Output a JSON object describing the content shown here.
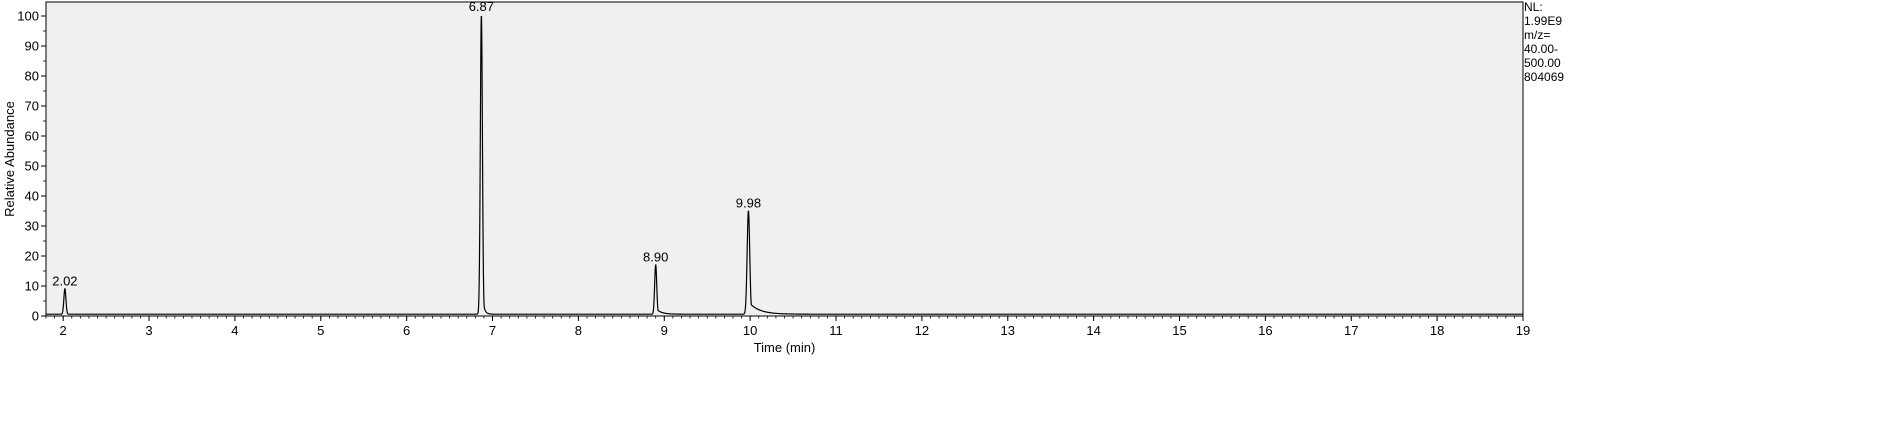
{
  "chart_data": {
    "type": "line",
    "title": "",
    "xlabel": "Time (min)",
    "ylabel": "Relative Abundance",
    "xlim": [
      1.8,
      19.0
    ],
    "ylim": [
      0,
      100
    ],
    "x_ticks": [
      "2",
      "3",
      "4",
      "5",
      "6",
      "7",
      "8",
      "9",
      "10",
      "11",
      "12",
      "13",
      "14",
      "15",
      "16",
      "17",
      "18",
      "19"
    ],
    "y_ticks": [
      "0",
      "10",
      "20",
      "30",
      "40",
      "50",
      "60",
      "70",
      "80",
      "90",
      "100"
    ],
    "grid": false,
    "plot_background": "#f0f0f0",
    "line_color": "#000000",
    "side_note": [
      "NL:",
      "1.99E9",
      "m/z=",
      "40.00-",
      "500.00",
      "804069"
    ],
    "peaks": [
      {
        "label": "2.02",
        "x": 2.02,
        "y": 8.5,
        "width": 0.012,
        "tail": 0.0
      },
      {
        "label": "6.87",
        "x": 6.87,
        "y": 100,
        "width": 0.012,
        "tail": 0.02
      },
      {
        "label": "8.90",
        "x": 8.9,
        "y": 16.5,
        "width": 0.012,
        "tail": 0.06
      },
      {
        "label": "9.98",
        "x": 9.98,
        "y": 34.5,
        "width": 0.015,
        "tail": 0.12
      }
    ],
    "baseline": 0.6
  }
}
